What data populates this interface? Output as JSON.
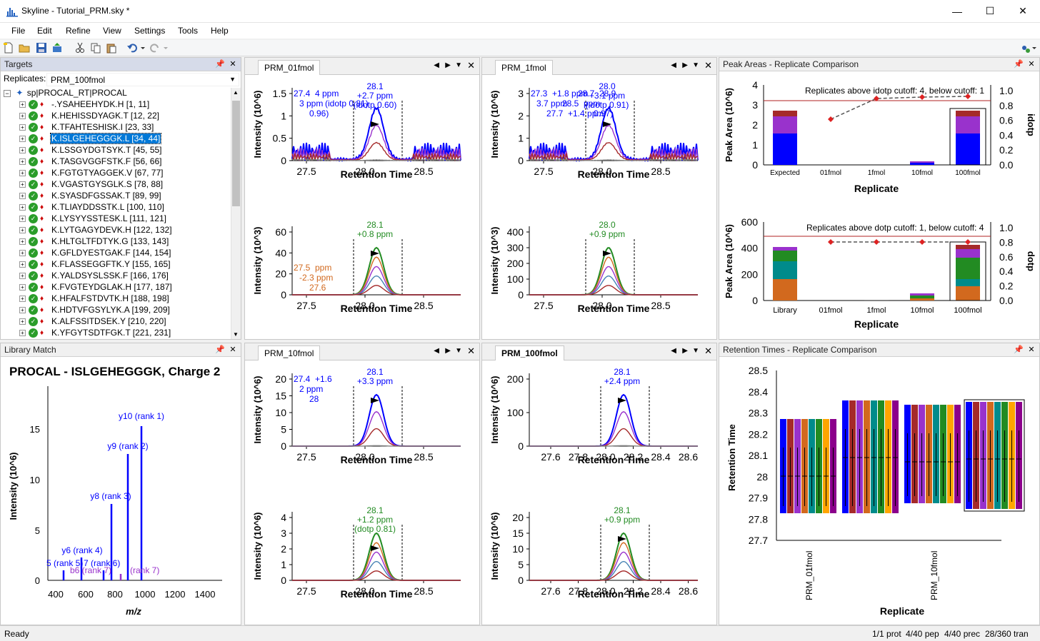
{
  "window": {
    "title": "Skyline - Tutorial_PRM.sky *",
    "minimize": "—",
    "maximize": "☐",
    "close": "✕"
  },
  "menu": [
    "File",
    "Edit",
    "Refine",
    "View",
    "Settings",
    "Tools",
    "Help"
  ],
  "targets": {
    "title": "Targets",
    "replicates_label": "Replicates:",
    "replicate_selected": "PRM_100fmol",
    "root": "sp|PROCAL_RT|PROCAL",
    "items": [
      "-.YSAHEEHYDK.H [1, 11]",
      "K.HEHISSDYAGK.T [12, 22]",
      "K.TFAHTESHISK.I [23, 33]",
      "K.ISLGEHEGGGK.L [34, 44]",
      "K.LSSGYDGTSYK.T [45, 55]",
      "K.TASGVGGFSTK.F [56, 66]",
      "K.FGTGTYAGGEK.V [67, 77]",
      "K.VGASTGYSGLK.S [78, 88]",
      "K.SYASDFGSSAK.T [89, 99]",
      "K.TLIAYDDSSTK.L [100, 110]",
      "K.LYSYYSSTESK.L [111, 121]",
      "K.LYTGAGYDEVK.H [122, 132]",
      "K.HLTGLTFDTYK.G [133, 143]",
      "K.GFLDYESTGAK.F [144, 154]",
      "K.FLASSEGGFTK.Y [155, 165]",
      "K.YALDSYSLSSK.F [166, 176]",
      "K.FVGTEYDGLAK.H [177, 187]",
      "K.HFALFSTDVTK.H [188, 198]",
      "K.HDTVFGSYLYK.A [199, 209]",
      "K.ALFSSITDSEK.Y [210, 220]",
      "K.YFGYTSDTFGK.T [221, 231]"
    ],
    "selected_index": 3
  },
  "library": {
    "title": "Library Match",
    "heading": "PROCAL - ISLGEHEGGGK, Charge 2",
    "ylabel": "Intensity (10^6)",
    "xlabel": "m/z",
    "xticks": [
      "400",
      "600",
      "800",
      "1000",
      "1200",
      "1400"
    ],
    "yticks": [
      "0",
      "5",
      "10",
      "15"
    ],
    "labels": [
      "y10 (rank 1)",
      "y9 (rank 2)",
      "y8 (rank 3)",
      "y6 (rank 4)",
      "5 (rank 5)",
      "7 (rank 6)",
      "b6 (rank 7)",
      "(rank 7)"
    ]
  },
  "chrom": {
    "xlabel": "Retention Time",
    "tabs": [
      {
        "name": "PRM_01fmol",
        "ms2_ylabel": "Intensity (10^6)",
        "ms1_ylabel": "Intensity (10^3)",
        "ms2_yticks": [
          "0",
          "0.5",
          "1",
          "1.5"
        ],
        "ms1_yticks": [
          "0",
          "20",
          "40",
          "60"
        ],
        "xticks": [
          "27.5",
          "28.0",
          "28.5"
        ],
        "ms2_ann": [
          "28.1",
          "+2.7 ppm",
          "(idotp 0.60)"
        ],
        "ms2_ann2": [
          "27.4",
          "3 ppm",
          "0.96)",
          "4 ppm",
          "(idotp 0.81)"
        ],
        "ms1_ann": [
          "28.1",
          "+0.8 ppm"
        ],
        "ms1_ann2": [
          "27.5",
          "-2.3 ppm",
          "27.6",
          "ppm"
        ]
      },
      {
        "name": "PRM_1fmol",
        "ms2_ylabel": "Intensity (10^6)",
        "ms1_ylabel": "Intensity (10^3)",
        "ms2_yticks": [
          "0",
          "1",
          "2",
          "3"
        ],
        "ms1_yticks": [
          "0",
          "100",
          "200",
          "300",
          "400"
        ],
        "xticks": [
          "27.5",
          "28.0",
          "28.5"
        ],
        "ms2_ann": [
          "28.0",
          "+3.1 ppm",
          "(idotp 0.91)"
        ],
        "ms2_ann2": [
          "27.3",
          "3.7 ppm",
          "27.7",
          "+1.8 ppm",
          "28.5",
          "+1.4 ppm",
          "28.7",
          "ppm",
          "0.97)",
          "28.9"
        ],
        "ms1_ann": [
          "28.0",
          "+0.9 ppm"
        ]
      },
      {
        "name": "PRM_10fmol",
        "ms2_ylabel": "Intensity (10^6)",
        "ms1_ylabel": "Intensity (10^6)",
        "ms2_yticks": [
          "0",
          "5",
          "10",
          "15",
          "20"
        ],
        "ms1_yticks": [
          "0",
          "1",
          "2",
          "3",
          "4"
        ],
        "xticks": [
          "27.5",
          "28.0",
          "28.5"
        ],
        "ms2_ann": [
          "28.1",
          "+3.3 ppm"
        ],
        "ms2_ann2": [
          "27.4",
          "2 ppm",
          "28",
          "+1.6"
        ],
        "ms1_ann": [
          "28.1",
          "+1.2 ppm",
          "(dotp 0.81)"
        ]
      },
      {
        "name": "PRM_100fmol",
        "ms2_ylabel": "Intensity (10^6)",
        "ms1_ylabel": "Intensity (10^6)",
        "ms2_yticks": [
          "0",
          "100",
          "200"
        ],
        "ms1_yticks": [
          "0",
          "5",
          "10",
          "15",
          "20"
        ],
        "xticks": [
          "27.6",
          "27.8",
          "28.0",
          "28.2",
          "28.4",
          "28.6"
        ],
        "ms2_ann": [
          "28.1",
          "+2.4 ppm"
        ],
        "ms1_ann": [
          "28.1",
          "+0.9 ppm"
        ]
      }
    ]
  },
  "peak_areas": {
    "title": "Peak Areas - Replicate Comparison",
    "top": {
      "ylabel": "Peak Area (10^6)",
      "y2label": "idotp",
      "yticks": [
        "0",
        "1",
        "2",
        "3",
        "4"
      ],
      "y2ticks": [
        "0.0",
        "0.2",
        "0.4",
        "0.6",
        "0.8",
        "1.0"
      ],
      "xcats": [
        "Expected",
        "01fmol",
        "1fmol",
        "10fmol",
        "100fmol"
      ],
      "note": "Replicates above idotp cutoff: 4, below cutoff: 1",
      "xlabel": "Replicate"
    },
    "bottom": {
      "ylabel": "Peak Area (10^6)",
      "y2label": "dotp",
      "yticks": [
        "0",
        "200",
        "400",
        "600"
      ],
      "y2ticks": [
        "0.0",
        "0.2",
        "0.4",
        "0.6",
        "0.8",
        "1.0"
      ],
      "xcats": [
        "Library",
        "01fmol",
        "1fmol",
        "10fmol",
        "100fmol"
      ],
      "note": "Replicates above dotp cutoff: 1, below cutoff: 4",
      "xlabel": "Replicate"
    }
  },
  "retention": {
    "title": "Retention Times - Replicate Comparison",
    "ylabel": "Retention Time",
    "xlabel": "Replicate",
    "yticks": [
      "27.7",
      "27.8",
      "27.9",
      "28",
      "28.1",
      "28.2",
      "28.3",
      "28.4",
      "28.5"
    ],
    "xcats": [
      "PRM_01fmol",
      "PRM_10fmol"
    ]
  },
  "status": {
    "ready": "Ready",
    "prot": "1/1 prot",
    "pep": "4/40 pep",
    "prec": "4/40 prec",
    "tran": "28/360 tran"
  },
  "colors": {
    "selection": "#0078d7",
    "blue": "#0000ff",
    "purple": "#9932cc",
    "brown": "#a52a2a",
    "green": "#228b22",
    "orange": "#d2691e"
  }
}
